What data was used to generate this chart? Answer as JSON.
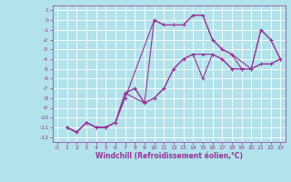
{
  "xlabel": "Windchill (Refroidissement éolien,°C)",
  "bg_color": "#b2e2ea",
  "line_color": "#993399",
  "grid_color": "#ffffff",
  "xlim": [
    -0.5,
    23.5
  ],
  "ylim": [
    -12.5,
    1.5
  ],
  "xticks": [
    0,
    1,
    2,
    3,
    4,
    5,
    6,
    7,
    8,
    9,
    10,
    11,
    12,
    13,
    14,
    15,
    16,
    17,
    18,
    19,
    20,
    21,
    22,
    23
  ],
  "yticks": [
    1,
    0,
    -1,
    -2,
    -3,
    -4,
    -5,
    -6,
    -7,
    -8,
    -9,
    -10,
    -11,
    -12
  ],
  "lines": [
    {
      "x": [
        1,
        2,
        3,
        4,
        5,
        6,
        7,
        10,
        11,
        12,
        13,
        14,
        15,
        16,
        17,
        18,
        20,
        21,
        22,
        23
      ],
      "y": [
        -11,
        -11.5,
        -10.5,
        -11,
        -11,
        -10.5,
        -8,
        0,
        -0.5,
        -0.5,
        -0.5,
        0.5,
        0.5,
        -2,
        -3,
        -3.5,
        -5,
        -1,
        -2,
        -4
      ]
    },
    {
      "x": [
        1,
        2,
        3,
        4,
        5,
        6,
        7,
        9,
        10,
        11,
        12,
        13,
        14,
        15,
        16,
        17,
        18,
        19,
        20,
        21,
        22,
        23
      ],
      "y": [
        -11,
        -11.5,
        -10.5,
        -11,
        -11,
        -10.5,
        -7.5,
        -8.5,
        0,
        -0.5,
        -0.5,
        -0.5,
        0.5,
        0.5,
        -2,
        -3,
        -3.5,
        -5,
        -5,
        -1,
        -2,
        -4
      ]
    },
    {
      "x": [
        1,
        2,
        3,
        4,
        5,
        6,
        7,
        8,
        9,
        10,
        11,
        12,
        13,
        14,
        15,
        16,
        17,
        18,
        19,
        20,
        21,
        22,
        23
      ],
      "y": [
        -11,
        -11.5,
        -10.5,
        -11,
        -11,
        -10.5,
        -7.5,
        -7,
        -8.5,
        -8,
        -7,
        -5,
        -4,
        -3.5,
        -6,
        -3.5,
        -4,
        -5,
        -5,
        -5,
        -4.5,
        -4.5,
        -4
      ]
    },
    {
      "x": [
        1,
        2,
        3,
        4,
        5,
        6,
        7,
        8,
        9,
        10,
        11,
        12,
        13,
        14,
        15,
        16,
        17,
        18,
        19,
        20,
        21,
        22,
        23
      ],
      "y": [
        -11,
        -11.5,
        -10.5,
        -11,
        -11,
        -10.5,
        -7.5,
        -7,
        -8.5,
        -8,
        -7,
        -5,
        -4,
        -3.5,
        -3.5,
        -3.5,
        -4,
        -5,
        -5,
        -5,
        -4.5,
        -4.5,
        -4
      ]
    }
  ]
}
